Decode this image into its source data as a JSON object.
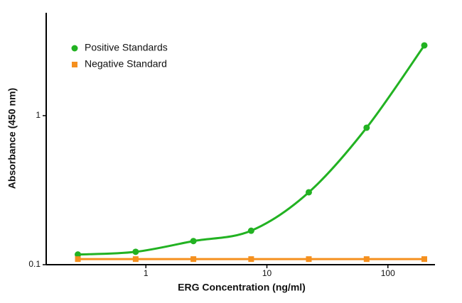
{
  "chart_data": {
    "type": "scatter",
    "x_label": "ERG Concentration (ng/ml)",
    "y_label": "Absorbance (450 nm)",
    "x": [
      0.274,
      0.823,
      2.47,
      7.41,
      22.2,
      66.7,
      200
    ],
    "series": [
      {
        "name": "Positive Standards",
        "color": "#22b222",
        "marker": "circle",
        "values": [
          0.117,
          0.122,
          0.144,
          0.169,
          0.306,
          0.83,
          2.96
        ]
      },
      {
        "name": "Negative Standard",
        "color": "#f5901e",
        "marker": "square",
        "values": [
          0.109,
          0.109,
          0.109,
          0.109,
          0.109,
          0.109,
          0.109
        ]
      }
    ],
    "x_scale": "log",
    "y_scale": "log",
    "xlim": [
      0.15,
      245
    ],
    "ylim": [
      0.1,
      4.9
    ],
    "xticks": [
      1,
      10,
      100
    ],
    "yticks": [
      0.1,
      1
    ],
    "grid": false,
    "legend": "upper left"
  }
}
